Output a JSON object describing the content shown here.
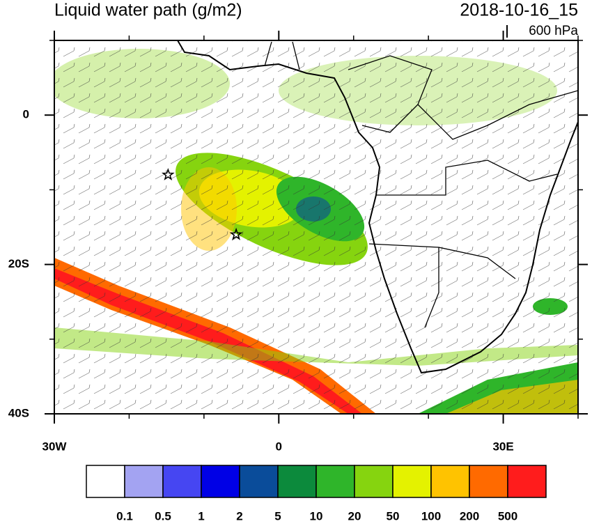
{
  "title": "Liquid water path (g/m2)",
  "timestamp": "2018-10-16_15",
  "level": "600 hPa",
  "map": {
    "xlim": [
      -30,
      40
    ],
    "ylim": [
      -40,
      10
    ],
    "xticks": [
      {
        "value": -30,
        "label": "30W"
      },
      0,
      {
        "value": 30,
        "label": "30E"
      }
    ],
    "yticks": [
      0,
      {
        "value": -20,
        "label": "20S"
      },
      {
        "value": -40,
        "label": "40S"
      }
    ],
    "xminor": [
      -20,
      -10,
      10,
      20,
      40
    ],
    "yminor": [
      10,
      -10,
      -30
    ],
    "markers": [
      {
        "lon": -14.8,
        "lat": -8
      },
      {
        "lon": -5.7,
        "lat": -16
      }
    ]
  },
  "colorbar": {
    "levels": [
      0.1,
      0.5,
      1,
      2,
      5,
      10,
      20,
      50,
      100,
      200,
      500
    ],
    "colors": [
      "#ffffff",
      "#a3a3f2",
      "#4646f2",
      "#0000e6",
      "#0a4c9a",
      "#0c8a3c",
      "#2fb52a",
      "#86d40f",
      "#e4f200",
      "#ffc300",
      "#ff6a00",
      "#ff1c1c"
    ]
  }
}
